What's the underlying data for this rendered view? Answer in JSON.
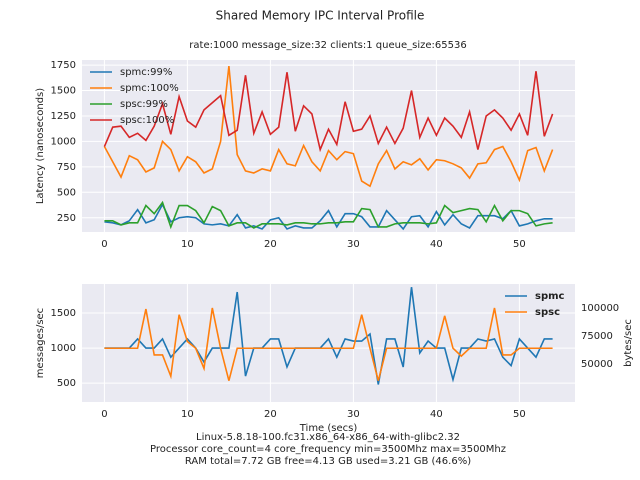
{
  "title": "Shared Memory IPC Interval Profile",
  "footer": [
    "Linux-5.8.18-100.fc31.x86_64-x86_64-with-glibc2.32",
    "Processor core_count=4 core_frequency min=3500Mhz max=3500Mhz",
    "RAM total=7.72 GB free=4.13 GB used=3.21 GB (46.6%)"
  ],
  "chart_data": [
    {
      "type": "line",
      "subtitle": "rate:1000 message_size:32 clients:1 queue_size:65536",
      "ylabel": "Latency (nanoseconds)",
      "x": [
        0,
        1,
        2,
        3,
        4,
        5,
        6,
        7,
        8,
        9,
        10,
        11,
        12,
        13,
        14,
        15,
        16,
        17,
        18,
        19,
        20,
        21,
        22,
        23,
        24,
        25,
        26,
        27,
        28,
        29,
        30,
        31,
        32,
        33,
        34,
        35,
        36,
        37,
        38,
        39,
        40,
        41,
        42,
        43,
        44,
        45,
        46,
        47,
        48,
        49,
        50,
        51,
        52,
        53,
        54
      ],
      "xlim": [
        -2.7,
        56.7
      ],
      "xticks": [
        0,
        10,
        20,
        30,
        40,
        50
      ],
      "ylim": [
        110,
        1800
      ],
      "yticks": [
        250,
        500,
        750,
        1000,
        1250,
        1500,
        1750
      ],
      "grid": true,
      "legend": "upper left",
      "series": [
        {
          "name": "spmc:99%",
          "color": "#1f77b4",
          "values": [
            210,
            200,
            180,
            220,
            330,
            200,
            230,
            380,
            210,
            250,
            260,
            250,
            190,
            180,
            190,
            170,
            280,
            150,
            170,
            140,
            230,
            250,
            140,
            170,
            150,
            150,
            220,
            320,
            160,
            290,
            290,
            260,
            160,
            160,
            320,
            230,
            140,
            260,
            270,
            160,
            310,
            180,
            280,
            190,
            150,
            270,
            270,
            270,
            240,
            320,
            170,
            190,
            220,
            240,
            240
          ]
        },
        {
          "name": "spmc:100%",
          "color": "#ff7f0e",
          "values": [
            950,
            800,
            650,
            860,
            820,
            700,
            740,
            1000,
            920,
            710,
            850,
            800,
            690,
            730,
            1000,
            1740,
            870,
            710,
            690,
            730,
            710,
            920,
            780,
            760,
            960,
            800,
            710,
            910,
            820,
            900,
            880,
            610,
            560,
            780,
            910,
            730,
            800,
            770,
            830,
            720,
            820,
            810,
            780,
            740,
            640,
            780,
            790,
            920,
            950,
            800,
            620,
            910,
            940,
            710,
            920
          ]
        },
        {
          "name": "spsc:99%",
          "color": "#2ca02c",
          "values": [
            220,
            220,
            180,
            200,
            200,
            370,
            290,
            400,
            160,
            370,
            370,
            320,
            200,
            360,
            320,
            170,
            200,
            200,
            150,
            190,
            190,
            190,
            180,
            200,
            200,
            190,
            190,
            200,
            200,
            210,
            210,
            340,
            330,
            160,
            160,
            190,
            200,
            200,
            200,
            190,
            200,
            370,
            300,
            320,
            340,
            330,
            210,
            370,
            220,
            320,
            320,
            290,
            170,
            190,
            200
          ]
        },
        {
          "name": "spsc:100%",
          "color": "#d62728",
          "values": [
            950,
            1140,
            1150,
            1040,
            1080,
            1010,
            1150,
            1370,
            1070,
            1440,
            1200,
            1140,
            1310,
            1380,
            1450,
            1060,
            1110,
            1650,
            1080,
            1290,
            1070,
            1140,
            1680,
            1100,
            1350,
            1270,
            920,
            1120,
            970,
            1390,
            1100,
            1120,
            1250,
            980,
            1140,
            980,
            1130,
            1500,
            1040,
            1230,
            1060,
            1230,
            1150,
            1040,
            1290,
            920,
            1250,
            1310,
            1230,
            1110,
            1270,
            1060,
            1690,
            1050,
            1270
          ]
        }
      ]
    },
    {
      "type": "line",
      "xlabel": "Time (secs)",
      "ylabel": "messages/sec",
      "y2label": "bytes/sec",
      "x": [
        0,
        1,
        2,
        3,
        4,
        5,
        6,
        7,
        8,
        9,
        10,
        11,
        12,
        13,
        14,
        15,
        16,
        17,
        18,
        19,
        20,
        21,
        22,
        23,
        24,
        25,
        26,
        27,
        28,
        29,
        30,
        31,
        32,
        33,
        34,
        35,
        36,
        37,
        38,
        39,
        40,
        41,
        42,
        43,
        44,
        45,
        46,
        47,
        48,
        49,
        50,
        51,
        52,
        53,
        54
      ],
      "xlim": [
        -2.7,
        56.7
      ],
      "xticks": [
        0,
        10,
        20,
        30,
        40,
        50
      ],
      "ylim": [
        230,
        1915
      ],
      "yticks": [
        500,
        1000,
        1500
      ],
      "y2lim": [
        16000,
        121400
      ],
      "y2ticks": [
        50000,
        75000,
        100000
      ],
      "grid": true,
      "legend": "upper right",
      "series": [
        {
          "name": "spmc",
          "color": "#1f77b4",
          "values": [
            1000,
            1000,
            1000,
            1000,
            1130,
            1000,
            1000,
            1130,
            870,
            1000,
            1130,
            1000,
            800,
            1000,
            1000,
            1000,
            1800,
            600,
            1000,
            1000,
            1130,
            1130,
            730,
            1000,
            1000,
            1000,
            1000,
            1130,
            870,
            1130,
            1100,
            1100,
            1200,
            480,
            1130,
            1130,
            730,
            1870,
            930,
            1100,
            1000,
            1000,
            550,
            1000,
            1000,
            1130,
            1100,
            1130,
            870,
            750,
            1130,
            1000,
            870,
            1130,
            1130
          ]
        },
        {
          "name": "spsc",
          "color": "#ff7f0e",
          "axis": "y2",
          "values": [
            64000,
            64000,
            64000,
            64000,
            64000,
            99000,
            58000,
            58000,
            39000,
            94000,
            70000,
            64000,
            46000,
            100000,
            64000,
            35000,
            64000,
            64000,
            64000,
            64000,
            64000,
            64000,
            64000,
            64000,
            64000,
            64000,
            64000,
            64000,
            64000,
            64000,
            64000,
            94000,
            64000,
            35000,
            64000,
            64000,
            64000,
            64000,
            64000,
            64000,
            64000,
            93000,
            64000,
            57000,
            64000,
            64000,
            64000,
            100000,
            58000,
            58000,
            64000,
            64000,
            64000,
            64000,
            64000
          ]
        }
      ]
    }
  ]
}
